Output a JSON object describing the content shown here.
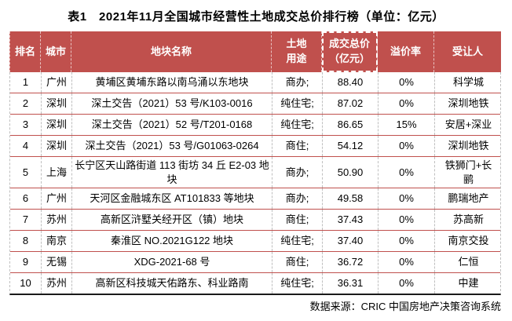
{
  "page_title": "表1　2021年11月全国城市经营性土地成交总价排行榜（单位：亿元）",
  "source_note": "数据来源：CRIC 中国房地产决策咨询系统",
  "colors": {
    "header_bg": "#C0504D",
    "header_text": "#FFFFFF",
    "row_separator": "#C0504D",
    "grid_dashed": "#BFBFBF",
    "table_bottom_border": "#1A1A1A",
    "body_text": "#000000"
  },
  "table": {
    "header_display": [
      "排名",
      "城市",
      "地块名称",
      "土地\n用途",
      "成交总价\n（亿元）",
      "溢价率",
      "受让人"
    ],
    "highlighted_column": "成交总价（亿元）"
  },
  "chart_data": {
    "type": "table",
    "title": "表1　2021年11月全国城市经营性土地成交总价排行榜（单位：亿元）",
    "unit": "亿元",
    "columns": [
      "排名",
      "城市",
      "地块名称",
      "土地用途",
      "成交总价（亿元）",
      "溢价率",
      "受让人"
    ],
    "rows": [
      [
        "1",
        "广州",
        "黄埔区黄埔东路以南乌涌以东地块",
        "商办;",
        "88.40",
        "0%",
        "科学城"
      ],
      [
        "2",
        "深圳",
        "深土交告（2021）53 号/K103-0016",
        "纯住宅;",
        "87.02",
        "0%",
        "深圳地铁"
      ],
      [
        "3",
        "深圳",
        "深土交告（2021）52 号/T201-0168",
        "纯住宅;",
        "86.65",
        "15%",
        "安居+深业"
      ],
      [
        "4",
        "深圳",
        "深土交告（2021）53 号/G01063-0264",
        "商住;",
        "54.12",
        "0%",
        "深圳地铁"
      ],
      [
        "5",
        "上海",
        "长宁区天山路街道 113 街坊 34 丘 E2-03 地块",
        "商办;",
        "50.90",
        "0%",
        "铁狮门+长鹂"
      ],
      [
        "6",
        "广州",
        "天河区金融城东区 AT101833 等地块",
        "商办;",
        "49.58",
        "0%",
        "鹏瑞地产"
      ],
      [
        "7",
        "苏州",
        "高新区浒墅关经开区（镇）地块",
        "商住;",
        "37.43",
        "0%",
        "苏高新"
      ],
      [
        "8",
        "南京",
        "秦淮区 NO.2021G122 地块",
        "纯住宅;",
        "37.40",
        "0%",
        "南京交投"
      ],
      [
        "9",
        "无锡",
        "XDG-2021-68 号",
        "商住;",
        "36.72",
        "0%",
        "仁恒"
      ],
      [
        "10",
        "苏州",
        "高新区科技城天佑路东、科业路南",
        "纯住宅;",
        "36.31",
        "0%",
        "中建"
      ]
    ],
    "source": "数据来源：CRIC 中国房地产决策咨询系统"
  }
}
